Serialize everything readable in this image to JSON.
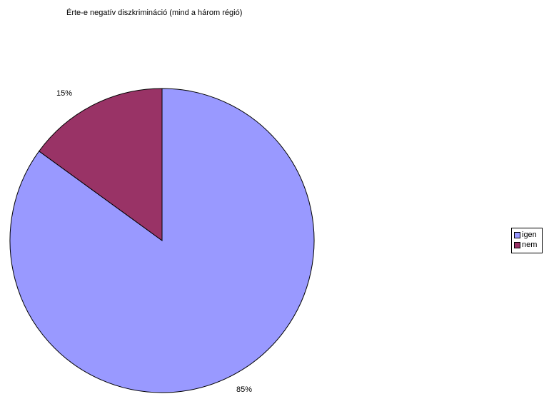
{
  "chart_data": {
    "type": "pie",
    "title": "Érte-e negatív diszkrimináció (mind a három régió)",
    "categories": [
      "igen",
      "nem"
    ],
    "values": [
      85,
      15
    ],
    "data_labels": [
      "85%",
      "15%"
    ],
    "colors": [
      "#9999FF",
      "#993366"
    ],
    "start_angle_deg": 0,
    "direction": "clockwise-from-top",
    "legend": {
      "position": "right",
      "entries": [
        "igen",
        "nem"
      ]
    }
  }
}
